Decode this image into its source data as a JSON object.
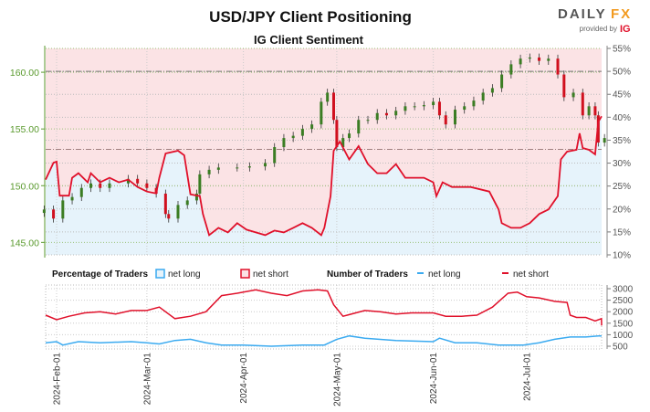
{
  "header": {
    "title": "USD/JPY Client Positioning",
    "subtitle": "IG Client Sentiment"
  },
  "logo": {
    "brand_a": "DAILY",
    "brand_b": "FX",
    "provided_by": "provided by",
    "ig": "IG"
  },
  "colors": {
    "net_long": "#3aaaf0",
    "net_short": "#e0102a",
    "long_fill": "#e6f3fb",
    "short_fill": "#fbe3e5",
    "up_candle": "#3b7d23",
    "down_candle": "#d0101e",
    "price_axis": "#5a9a2e"
  },
  "legend": {
    "pct_title": "Percentage of Traders",
    "pct_long": "net long",
    "pct_short": "net short",
    "num_title": "Number of Traders",
    "num_long": "net long",
    "num_short": "net short"
  },
  "chart_data": [
    {
      "type": "candlestick+area",
      "title": "IG Client Sentiment",
      "left_axis": {
        "label": "",
        "ticks": [
          "145.00",
          "150.00",
          "155.00",
          "160.00"
        ],
        "range": [
          143.9,
          162.1
        ]
      },
      "right_axis": {
        "label": "",
        "ticks": [
          "10%",
          "15%",
          "20%",
          "25%",
          "30%",
          "35%",
          "40%",
          "45%",
          "50%",
          "55%"
        ],
        "range": [
          10,
          55
        ]
      },
      "reference_lines": {
        "pct": 50,
        "price": 153.2
      },
      "grid": true,
      "price_close": [
        [
          "2024-01-28",
          147.9
        ],
        [
          "2024-01-31",
          147.1
        ],
        [
          "2024-02-03",
          148.7
        ],
        [
          "2024-02-06",
          149.0
        ],
        [
          "2024-02-09",
          149.8
        ],
        [
          "2024-02-12",
          150.2
        ],
        [
          "2024-02-15",
          149.8
        ],
        [
          "2024-02-18",
          150.2
        ],
        [
          "2024-02-24",
          150.6
        ],
        [
          "2024-02-27",
          150.2
        ],
        [
          "2024-03-01",
          149.8
        ],
        [
          "2024-03-04",
          149.3
        ],
        [
          "2024-03-07",
          147.5
        ],
        [
          "2024-03-08",
          147.1
        ],
        [
          "2024-03-11",
          148.3
        ],
        [
          "2024-03-14",
          148.7
        ],
        [
          "2024-03-17",
          149.3
        ],
        [
          "2024-03-18",
          151.0
        ],
        [
          "2024-03-21",
          151.4
        ],
        [
          "2024-03-24",
          151.6
        ],
        [
          "2024-03-30",
          151.6
        ],
        [
          "2024-04-03",
          151.7
        ],
        [
          "2024-04-08",
          152.0
        ],
        [
          "2024-04-11",
          153.4
        ],
        [
          "2024-04-14",
          154.2
        ],
        [
          "2024-04-17",
          154.4
        ],
        [
          "2024-04-20",
          155.0
        ],
        [
          "2024-04-23",
          155.4
        ],
        [
          "2024-04-26",
          157.4
        ],
        [
          "2024-04-28",
          158.2
        ],
        [
          "2024-04-30",
          155.8
        ],
        [
          "2024-05-01",
          153.4
        ],
        [
          "2024-05-03",
          154.2
        ],
        [
          "2024-05-05",
          154.6
        ],
        [
          "2024-05-08",
          155.8
        ],
        [
          "2024-05-11",
          155.8
        ],
        [
          "2024-05-14",
          156.4
        ],
        [
          "2024-05-17",
          156.2
        ],
        [
          "2024-05-20",
          156.6
        ],
        [
          "2024-05-23",
          157.0
        ],
        [
          "2024-05-26",
          157.0
        ],
        [
          "2024-05-29",
          157.1
        ],
        [
          "2024-06-01",
          157.4
        ],
        [
          "2024-06-03",
          156.2
        ],
        [
          "2024-06-05",
          155.4
        ],
        [
          "2024-06-08",
          156.7
        ],
        [
          "2024-06-11",
          157.0
        ],
        [
          "2024-06-14",
          157.5
        ],
        [
          "2024-06-17",
          158.2
        ],
        [
          "2024-06-20",
          158.6
        ],
        [
          "2024-06-23",
          159.8
        ],
        [
          "2024-06-26",
          160.7
        ],
        [
          "2024-06-29",
          161.2
        ],
        [
          "2024-07-02",
          161.3
        ],
        [
          "2024-07-05",
          161.0
        ],
        [
          "2024-07-08",
          161.2
        ],
        [
          "2024-07-11",
          159.8
        ],
        [
          "2024-07-13",
          157.8
        ],
        [
          "2024-07-16",
          158.2
        ],
        [
          "2024-07-19",
          156.2
        ],
        [
          "2024-07-21",
          157.0
        ],
        [
          "2024-07-23",
          156.2
        ],
        [
          "2024-07-24",
          153.8
        ],
        [
          "2024-07-26",
          154.2
        ]
      ],
      "net_long_pct": [
        [
          "2024-01-28",
          26.4
        ],
        [
          "2024-01-31",
          30.1
        ],
        [
          "2024-02-01",
          30.3
        ],
        [
          "2024-02-02",
          22.9
        ],
        [
          "2024-02-05",
          22.9
        ],
        [
          "2024-02-06",
          26.8
        ],
        [
          "2024-02-08",
          27.8
        ],
        [
          "2024-02-11",
          25.8
        ],
        [
          "2024-02-12",
          27.8
        ],
        [
          "2024-02-15",
          25.8
        ],
        [
          "2024-02-18",
          26.8
        ],
        [
          "2024-02-21",
          25.8
        ],
        [
          "2024-02-24",
          26.4
        ],
        [
          "2024-02-27",
          24.8
        ],
        [
          "2024-03-01",
          23.8
        ],
        [
          "2024-03-04",
          23.4
        ],
        [
          "2024-03-05",
          26.8
        ],
        [
          "2024-03-07",
          32.1
        ],
        [
          "2024-03-11",
          32.7
        ],
        [
          "2024-03-13",
          31.7
        ],
        [
          "2024-03-15",
          23.2
        ],
        [
          "2024-03-18",
          22.8
        ],
        [
          "2024-03-19",
          18.9
        ],
        [
          "2024-03-21",
          14.3
        ],
        [
          "2024-03-24",
          15.9
        ],
        [
          "2024-03-27",
          14.9
        ],
        [
          "2024-03-30",
          16.9
        ],
        [
          "2024-04-02",
          15.5
        ],
        [
          "2024-04-05",
          14.9
        ],
        [
          "2024-04-08",
          14.3
        ],
        [
          "2024-04-11",
          15.3
        ],
        [
          "2024-04-14",
          14.9
        ],
        [
          "2024-04-17",
          15.9
        ],
        [
          "2024-04-20",
          16.9
        ],
        [
          "2024-04-23",
          15.9
        ],
        [
          "2024-04-26",
          14.3
        ],
        [
          "2024-04-27",
          15.9
        ],
        [
          "2024-04-29",
          22.8
        ],
        [
          "2024-04-30",
          32.7
        ],
        [
          "2024-05-02",
          34.7
        ],
        [
          "2024-05-05",
          30.8
        ],
        [
          "2024-05-08",
          33.7
        ],
        [
          "2024-05-11",
          29.8
        ],
        [
          "2024-05-14",
          27.8
        ],
        [
          "2024-05-17",
          27.8
        ],
        [
          "2024-05-20",
          29.8
        ],
        [
          "2024-05-23",
          26.8
        ],
        [
          "2024-05-29",
          26.8
        ],
        [
          "2024-06-01",
          25.8
        ],
        [
          "2024-06-02",
          22.8
        ],
        [
          "2024-06-04",
          25.8
        ],
        [
          "2024-06-07",
          24.8
        ],
        [
          "2024-06-13",
          24.8
        ],
        [
          "2024-06-19",
          23.8
        ],
        [
          "2024-06-22",
          19.9
        ],
        [
          "2024-06-23",
          16.9
        ],
        [
          "2024-06-26",
          15.9
        ],
        [
          "2024-06-29",
          15.9
        ],
        [
          "2024-07-02",
          16.9
        ],
        [
          "2024-07-05",
          18.9
        ],
        [
          "2024-07-08",
          19.9
        ],
        [
          "2024-07-11",
          22.8
        ],
        [
          "2024-07-12",
          30.8
        ],
        [
          "2024-07-14",
          32.5
        ],
        [
          "2024-07-17",
          32.9
        ],
        [
          "2024-07-18",
          36.5
        ],
        [
          "2024-07-19",
          33.3
        ],
        [
          "2024-07-21",
          32.9
        ],
        [
          "2024-07-23",
          31.9
        ],
        [
          "2024-07-24",
          39.0
        ],
        [
          "2024-07-26",
          40.2
        ]
      ]
    },
    {
      "type": "line",
      "right_axis": {
        "ticks": [
          "500",
          "1000",
          "1500",
          "2000",
          "2500",
          "3000"
        ],
        "range": [
          500,
          3000
        ]
      },
      "x_ticks": [
        "2024-Feb-01",
        "2024-Mar-01",
        "2024-Apr-01",
        "2024-May-01",
        "2024-Jun-01",
        "2024-Jul-01"
      ],
      "x_tick_dates": [
        "2024-02-01",
        "2024-03-01",
        "2024-04-01",
        "2024-05-01",
        "2024-06-01",
        "2024-07-01"
      ],
      "series": [
        {
          "name": "net short",
          "values": [
            [
              "2024-01-28",
              1850
            ],
            [
              "2024-02-01",
              1650
            ],
            [
              "2024-02-05",
              1800
            ],
            [
              "2024-02-10",
              1950
            ],
            [
              "2024-02-15",
              2000
            ],
            [
              "2024-02-20",
              1900
            ],
            [
              "2024-02-25",
              2050
            ],
            [
              "2024-03-01",
              2050
            ],
            [
              "2024-03-05",
              2200
            ],
            [
              "2024-03-10",
              1700
            ],
            [
              "2024-03-15",
              1800
            ],
            [
              "2024-03-20",
              2000
            ],
            [
              "2024-03-25",
              2700
            ],
            [
              "2024-03-30",
              2800
            ],
            [
              "2024-04-05",
              2950
            ],
            [
              "2024-04-10",
              2800
            ],
            [
              "2024-04-15",
              2700
            ],
            [
              "2024-04-20",
              2900
            ],
            [
              "2024-04-25",
              2950
            ],
            [
              "2024-04-28",
              2900
            ],
            [
              "2024-04-30",
              2300
            ],
            [
              "2024-05-03",
              1800
            ],
            [
              "2024-05-10",
              2050
            ],
            [
              "2024-05-15",
              2000
            ],
            [
              "2024-05-20",
              1900
            ],
            [
              "2024-05-25",
              1950
            ],
            [
              "2024-06-01",
              1950
            ],
            [
              "2024-06-05",
              1800
            ],
            [
              "2024-06-10",
              1800
            ],
            [
              "2024-06-15",
              1850
            ],
            [
              "2024-06-20",
              2200
            ],
            [
              "2024-06-25",
              2800
            ],
            [
              "2024-06-28",
              2850
            ],
            [
              "2024-07-01",
              2650
            ],
            [
              "2024-07-05",
              2600
            ],
            [
              "2024-07-10",
              2450
            ],
            [
              "2024-07-14",
              2400
            ],
            [
              "2024-07-15",
              1850
            ],
            [
              "2024-07-17",
              1750
            ],
            [
              "2024-07-20",
              1750
            ],
            [
              "2024-07-23",
              1600
            ],
            [
              "2024-07-25",
              1700
            ],
            [
              "2024-07-27",
              1400
            ]
          ]
        },
        {
          "name": "net long",
          "values": [
            [
              "2024-01-28",
              650
            ],
            [
              "2024-02-01",
              700
            ],
            [
              "2024-02-03",
              550
            ],
            [
              "2024-02-08",
              700
            ],
            [
              "2024-02-15",
              650
            ],
            [
              "2024-02-25",
              700
            ],
            [
              "2024-03-01",
              650
            ],
            [
              "2024-03-05",
              600
            ],
            [
              "2024-03-10",
              750
            ],
            [
              "2024-03-15",
              800
            ],
            [
              "2024-03-20",
              650
            ],
            [
              "2024-03-25",
              550
            ],
            [
              "2024-04-01",
              550
            ],
            [
              "2024-04-10",
              500
            ],
            [
              "2024-04-20",
              550
            ],
            [
              "2024-04-27",
              550
            ],
            [
              "2024-05-01",
              800
            ],
            [
              "2024-05-05",
              950
            ],
            [
              "2024-05-10",
              850
            ],
            [
              "2024-05-20",
              750
            ],
            [
              "2024-06-01",
              700
            ],
            [
              "2024-06-03",
              850
            ],
            [
              "2024-06-08",
              650
            ],
            [
              "2024-06-15",
              650
            ],
            [
              "2024-06-22",
              550
            ],
            [
              "2024-06-30",
              550
            ],
            [
              "2024-07-05",
              650
            ],
            [
              "2024-07-10",
              800
            ],
            [
              "2024-07-15",
              900
            ],
            [
              "2024-07-20",
              900
            ],
            [
              "2024-07-24",
              950
            ],
            [
              "2024-07-27",
              950
            ]
          ]
        }
      ]
    }
  ]
}
